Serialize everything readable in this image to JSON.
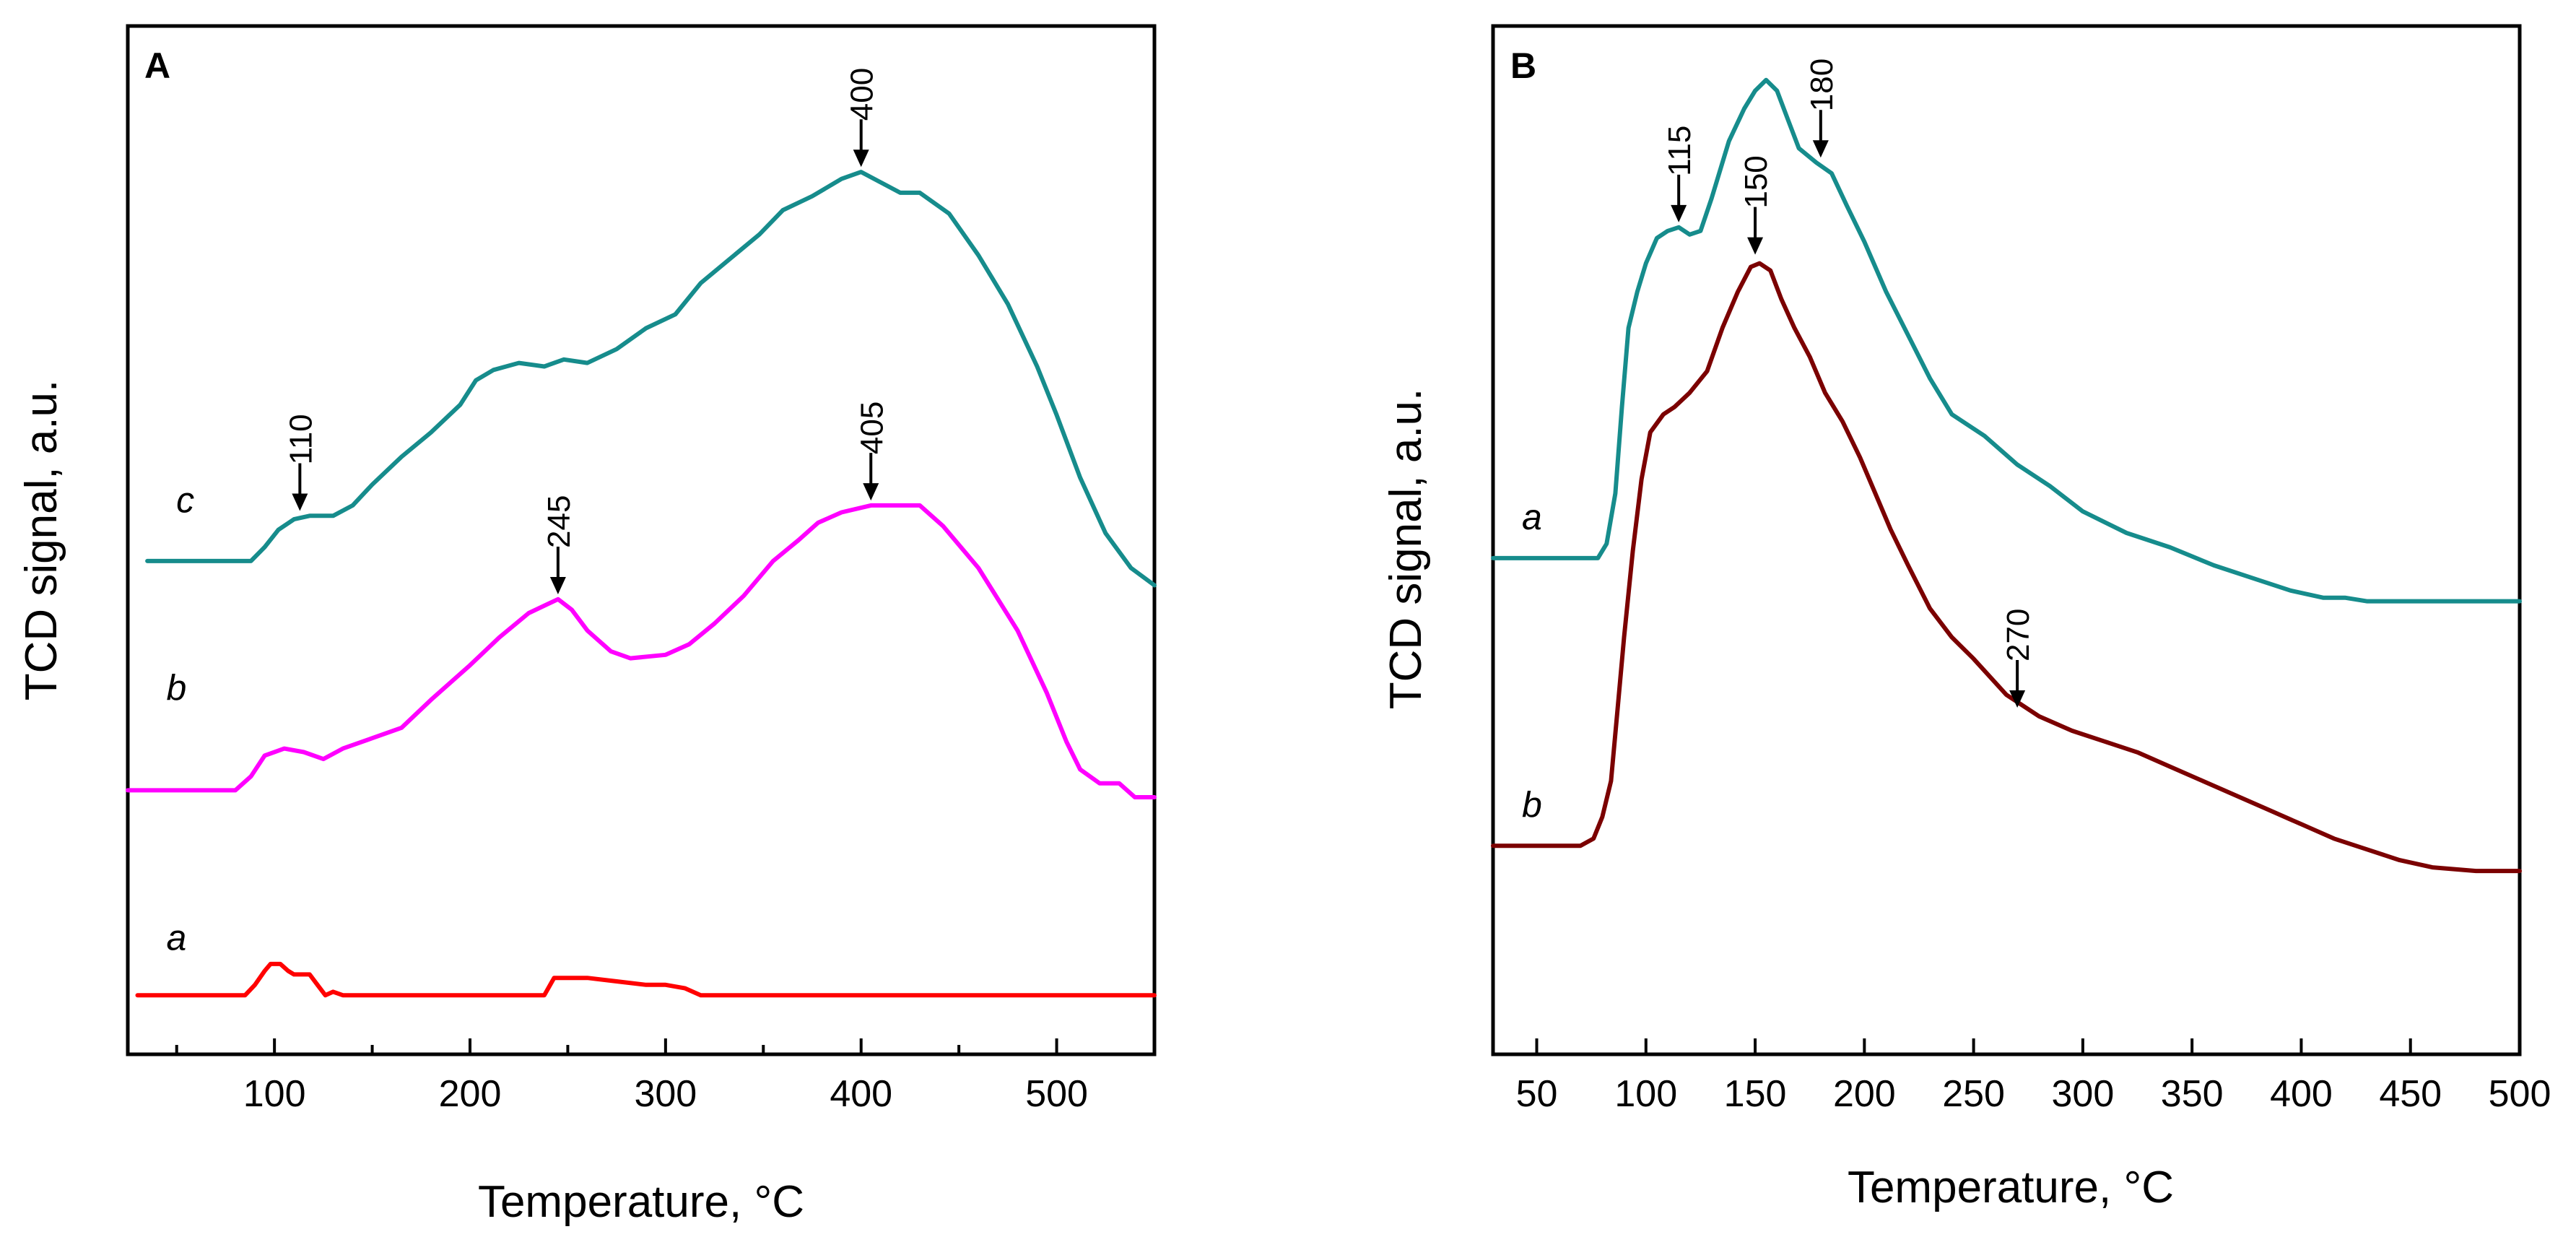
{
  "chart_data": [
    {
      "type": "line",
      "panel_label": "A",
      "xlabel": "Temperature, ",
      "xlabel_unit": "°C",
      "ylabel": "TCD signal, a.u.",
      "xlim": [
        25,
        550
      ],
      "x_ticks": [
        "100",
        "200",
        "300",
        "400",
        "500"
      ],
      "x_tick_values": [
        100,
        200,
        300,
        400,
        500
      ],
      "y_ticks": [],
      "grid": false,
      "series": [
        {
          "name": "a",
          "color": "#ff0000",
          "points": [
            [
              30,
              0.5
            ],
            [
              85,
              0.5
            ],
            [
              90,
              2
            ],
            [
              95,
              4
            ],
            [
              98,
              5
            ],
            [
              103,
              5
            ],
            [
              107,
              4
            ],
            [
              110,
              3.5
            ],
            [
              118,
              3.5
            ],
            [
              122,
              2
            ],
            [
              126,
              0.5
            ],
            [
              130,
              1
            ],
            [
              135,
              0.5
            ],
            [
              238,
              0.5
            ],
            [
              243,
              3
            ],
            [
              250,
              3
            ],
            [
              260,
              3
            ],
            [
              275,
              2.5
            ],
            [
              290,
              2
            ],
            [
              300,
              2
            ],
            [
              310,
              1.5
            ],
            [
              318,
              0.5
            ],
            [
              550,
              0.5
            ]
          ]
        },
        {
          "name": "b",
          "color": "#ff00ff",
          "points": [
            [
              25,
              30
            ],
            [
              80,
              30
            ],
            [
              88,
              32
            ],
            [
              95,
              35
            ],
            [
              105,
              36
            ],
            [
              115,
              35.5
            ],
            [
              125,
              34.5
            ],
            [
              135,
              36
            ],
            [
              150,
              37.5
            ],
            [
              165,
              39
            ],
            [
              180,
              43
            ],
            [
              200,
              48
            ],
            [
              215,
              52
            ],
            [
              230,
              55.5
            ],
            [
              245,
              57.5
            ],
            [
              252,
              56
            ],
            [
              260,
              53
            ],
            [
              272,
              50
            ],
            [
              282,
              49
            ],
            [
              300,
              49.5
            ],
            [
              312,
              51
            ],
            [
              325,
              54
            ],
            [
              340,
              58
            ],
            [
              355,
              63
            ],
            [
              368,
              66
            ],
            [
              378,
              68.5
            ],
            [
              390,
              70
            ],
            [
              405,
              71
            ],
            [
              430,
              71
            ],
            [
              442,
              68
            ],
            [
              460,
              62
            ],
            [
              480,
              53
            ],
            [
              495,
              44
            ],
            [
              505,
              37
            ],
            [
              512,
              33
            ],
            [
              522,
              31
            ],
            [
              532,
              31
            ],
            [
              540,
              29
            ],
            [
              550,
              29
            ]
          ]
        },
        {
          "name": "c",
          "color": "#168c8c",
          "points": [
            [
              35,
              63
            ],
            [
              88,
              63
            ],
            [
              95,
              65
            ],
            [
              102,
              67.5
            ],
            [
              110,
              69
            ],
            [
              118,
              69.5
            ],
            [
              130,
              69.5
            ],
            [
              140,
              71
            ],
            [
              150,
              74
            ],
            [
              165,
              78
            ],
            [
              180,
              81.5
            ],
            [
              195,
              85.5
            ],
            [
              203,
              89
            ],
            [
              212,
              90.5
            ],
            [
              225,
              91.5
            ],
            [
              238,
              91
            ],
            [
              248,
              92
            ],
            [
              260,
              91.5
            ],
            [
              275,
              93.5
            ],
            [
              290,
              96.5
            ],
            [
              305,
              98.5
            ],
            [
              318,
              103
            ],
            [
              333,
              106.5
            ],
            [
              348,
              110
            ],
            [
              360,
              113.5
            ],
            [
              375,
              115.5
            ],
            [
              390,
              118
            ],
            [
              400,
              119
            ],
            [
              410,
              117.5
            ],
            [
              420,
              116
            ],
            [
              430,
              116
            ],
            [
              445,
              113
            ],
            [
              460,
              107
            ],
            [
              475,
              100
            ],
            [
              490,
              91
            ],
            [
              500,
              84
            ],
            [
              512,
              75
            ],
            [
              525,
              67
            ],
            [
              538,
              62
            ],
            [
              550,
              59.5
            ]
          ]
        }
      ],
      "curve_labels": [
        {
          "text": "a",
          "x": 30,
          "y": 7
        },
        {
          "text": "b",
          "x": 30,
          "y": 43
        },
        {
          "text": "c",
          "x": 35,
          "y": 70
        }
      ],
      "annotations": [
        {
          "text": "110",
          "x": 113,
          "y": 70
        },
        {
          "text": "245",
          "x": 245,
          "y": 58
        },
        {
          "text": "400",
          "x": 400,
          "y": 119.5
        },
        {
          "text": "405",
          "x": 405,
          "y": 71.5
        }
      ]
    },
    {
      "type": "line",
      "panel_label": "B",
      "xlabel": "Temperature, ",
      "xlabel_unit": "°C",
      "ylabel": "TCD signal, a.u.",
      "xlim": [
        30,
        500
      ],
      "x_ticks": [
        "50",
        "100",
        "150",
        "200",
        "250",
        "300",
        "350",
        "400",
        "450",
        "500"
      ],
      "x_tick_values": [
        50,
        100,
        150,
        200,
        250,
        300,
        350,
        400,
        450,
        500
      ],
      "y_ticks": [],
      "grid": false,
      "series": [
        {
          "name": "a",
          "color": "#168c8c",
          "points": [
            [
              30,
              51
            ],
            [
              60,
              51
            ],
            [
              70,
              51
            ],
            [
              78,
              51
            ],
            [
              82,
              53
            ],
            [
              86,
              60
            ],
            [
              89,
              72
            ],
            [
              92,
              83
            ],
            [
              96,
              88
            ],
            [
              100,
              92
            ],
            [
              105,
              95.5
            ],
            [
              110,
              96.5
            ],
            [
              115,
              97
            ],
            [
              120,
              96
            ],
            [
              125,
              96.5
            ],
            [
              130,
              101
            ],
            [
              138,
              109
            ],
            [
              145,
              113.5
            ],
            [
              150,
              116
            ],
            [
              155,
              117.5
            ],
            [
              160,
              116
            ],
            [
              165,
              112
            ],
            [
              170,
              108
            ],
            [
              178,
              106
            ],
            [
              185,
              104.5
            ],
            [
              192,
              100
            ],
            [
              200,
              95
            ],
            [
              210,
              88
            ],
            [
              220,
              82
            ],
            [
              230,
              76
            ],
            [
              240,
              71
            ],
            [
              255,
              68
            ],
            [
              270,
              64
            ],
            [
              285,
              61
            ],
            [
              300,
              57.5
            ],
            [
              320,
              54.5
            ],
            [
              340,
              52.5
            ],
            [
              360,
              50
            ],
            [
              380,
              48
            ],
            [
              395,
              46.5
            ],
            [
              410,
              45.5
            ],
            [
              420,
              45.5
            ],
            [
              430,
              45
            ],
            [
              500,
              45
            ]
          ]
        },
        {
          "name": "b",
          "color": "#7b0000",
          "points": [
            [
              30,
              11
            ],
            [
              70,
              11
            ],
            [
              76,
              12
            ],
            [
              80,
              15
            ],
            [
              84,
              20
            ],
            [
              87,
              30
            ],
            [
              90,
              40
            ],
            [
              94,
              52
            ],
            [
              98,
              62
            ],
            [
              102,
              68.5
            ],
            [
              108,
              71
            ],
            [
              113,
              72
            ],
            [
              120,
              74
            ],
            [
              128,
              77
            ],
            [
              135,
              83
            ],
            [
              142,
              88
            ],
            [
              148,
              91.5
            ],
            [
              152,
              92
            ],
            [
              157,
              91
            ],
            [
              162,
              87
            ],
            [
              168,
              83
            ],
            [
              175,
              79
            ],
            [
              182,
              74
            ],
            [
              190,
              70
            ],
            [
              198,
              65
            ],
            [
              205,
              60
            ],
            [
              212,
              55
            ],
            [
              220,
              50
            ],
            [
              230,
              44
            ],
            [
              240,
              40
            ],
            [
              250,
              37
            ],
            [
              265,
              32
            ],
            [
              280,
              29
            ],
            [
              295,
              27
            ],
            [
              310,
              25.5
            ],
            [
              325,
              24
            ],
            [
              340,
              22
            ],
            [
              355,
              20
            ],
            [
              370,
              18
            ],
            [
              385,
              16
            ],
            [
              400,
              14
            ],
            [
              415,
              12
            ],
            [
              430,
              10.5
            ],
            [
              445,
              9
            ],
            [
              460,
              8
            ],
            [
              480,
              7.5
            ],
            [
              500,
              7.5
            ]
          ]
        }
      ],
      "curve_labels": [
        {
          "text": "a",
          "x": 30,
          "y": 55
        },
        {
          "text": "b",
          "x": 30,
          "y": 15
        }
      ],
      "annotations": [
        {
          "text": "115",
          "x": 115,
          "y": 97.5
        },
        {
          "text": "180",
          "x": 180,
          "y": 106.5
        },
        {
          "text": "150",
          "x": 150,
          "y": 93
        },
        {
          "text": "270",
          "x": 270,
          "y": 30
        }
      ]
    }
  ]
}
